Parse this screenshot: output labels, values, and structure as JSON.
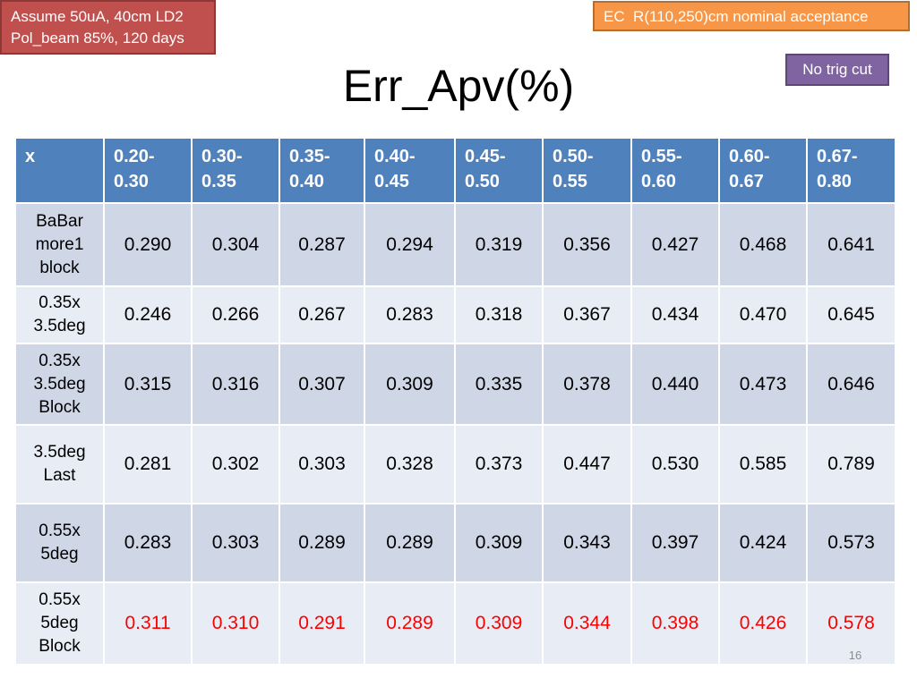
{
  "notes": {
    "assumption_line1": "Assume 50uA, 40cm LD2",
    "assumption_line2": "Pol_beam 85%, 120 days",
    "acceptance": "EC  R(110,250)cm nominal acceptance",
    "trigger": "No trig cut"
  },
  "title": "Err_Apv(%)",
  "table": {
    "header": [
      [
        "x"
      ],
      [
        "0.20-",
        "0.30"
      ],
      [
        "0.30-",
        "0.35"
      ],
      [
        "0.35-",
        "0.40"
      ],
      [
        "0.40-",
        "0.45"
      ],
      [
        "0.45-",
        "0.50"
      ],
      [
        "0.50-",
        "0.55"
      ],
      [
        "0.55-",
        "0.60"
      ],
      [
        "0.60-",
        "0.67"
      ],
      [
        "0.67-",
        "0.80"
      ]
    ],
    "rows": [
      {
        "label": [
          "BaBar",
          "more1",
          "block"
        ],
        "values": [
          "0.290",
          "0.304",
          "0.287",
          "0.294",
          "0.319",
          "0.356",
          "0.427",
          "0.468",
          "0.641"
        ],
        "highlight": false
      },
      {
        "label": [
          "0.35x",
          "3.5deg"
        ],
        "values": [
          "0.246",
          "0.266",
          "0.267",
          "0.283",
          "0.318",
          "0.367",
          "0.434",
          "0.470",
          "0.645"
        ],
        "highlight": false
      },
      {
        "label": [
          "0.35x",
          "3.5deg",
          "Block"
        ],
        "values": [
          "0.315",
          "0.316",
          "0.307",
          "0.309",
          "0.335",
          "0.378",
          "0.440",
          "0.473",
          "0.646"
        ],
        "highlight": false
      },
      {
        "label": [
          "3.5deg",
          "Last"
        ],
        "values": [
          "0.281",
          "0.302",
          "0.303",
          "0.328",
          "0.373",
          "0.447",
          "0.530",
          "0.585",
          "0.789"
        ],
        "highlight": false
      },
      {
        "label": [
          "0.55x",
          "5deg"
        ],
        "values": [
          "0.283",
          "0.303",
          "0.289",
          "0.289",
          "0.309",
          "0.343",
          "0.397",
          "0.424",
          "0.573"
        ],
        "highlight": false
      },
      {
        "label": [
          "0.55x",
          "5deg",
          "Block"
        ],
        "values": [
          "0.311",
          "0.310",
          "0.291",
          "0.289",
          "0.309",
          "0.344",
          "0.398",
          "0.426",
          "0.578"
        ],
        "highlight": true
      }
    ]
  },
  "page_number": "16",
  "colors": {
    "header_bg": "#4f81bd",
    "row_dark": "#cfd7e7",
    "row_light": "#e8ecf4",
    "highlight_text": "#ff0000"
  }
}
